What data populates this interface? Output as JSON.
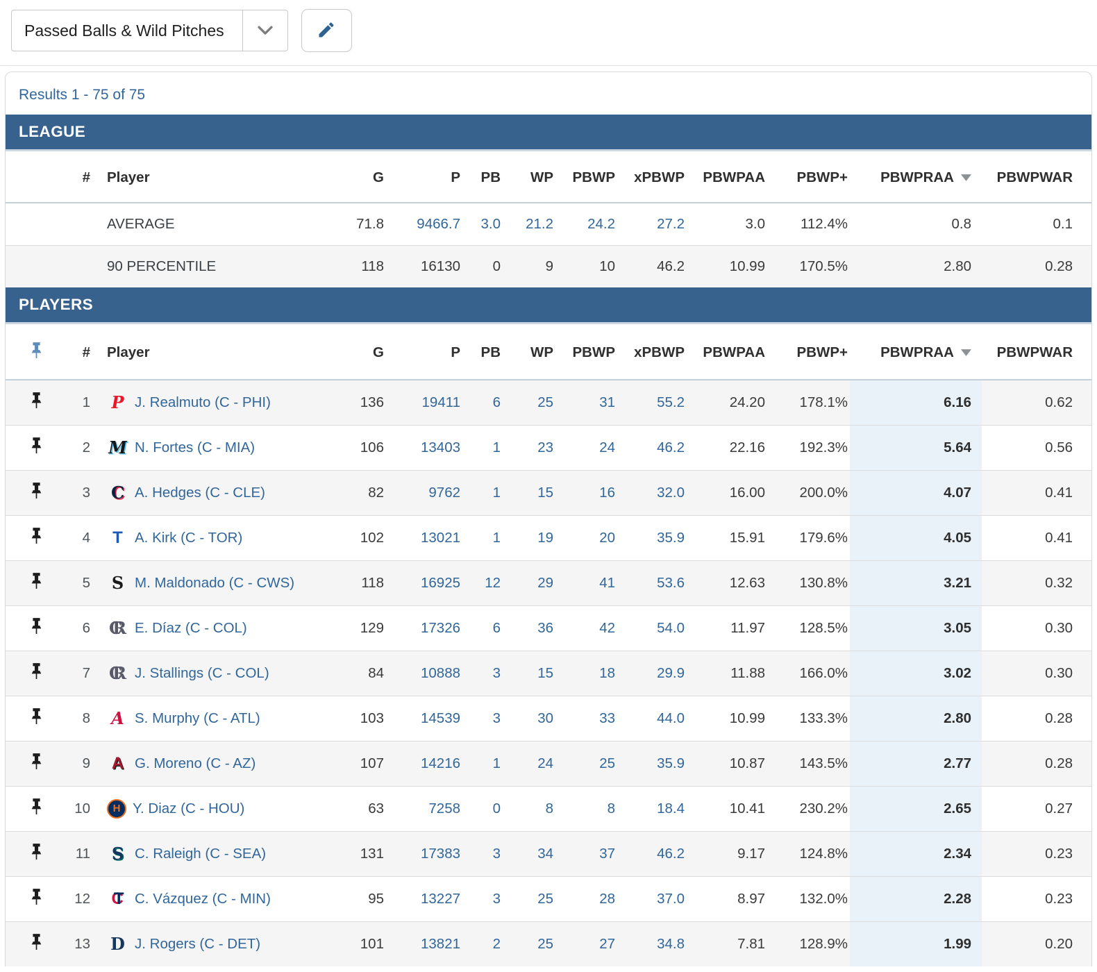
{
  "toolbar": {
    "preset_value": "Passed Balls & Wild Pitches",
    "chevron_icon": "chevron-down-icon",
    "edit_icon": "pencil-icon"
  },
  "results_text": "Results 1 - 75 of 75",
  "columns": [
    "#",
    "Player",
    "G",
    "P",
    "PB",
    "WP",
    "PBWP",
    "xPBWP",
    "PBWPAA",
    "PBWP+",
    "PBWPRAA",
    "PBWPWAR"
  ],
  "sorted_column": "PBWPRAA",
  "sort_direction": "desc",
  "league": {
    "title": "LEAGUE",
    "rows": [
      {
        "label": "AVERAGE",
        "linked": true,
        "stats": {
          "g": "71.8",
          "p": "9466.7",
          "pb": "3.0",
          "wp": "21.2",
          "pbwp": "24.2",
          "xpbwp": "27.2",
          "pbwpaa": "3.0",
          "pbwp_plus": "112.4%",
          "pbwpraa": "0.8",
          "pbwpwar": "0.1"
        }
      },
      {
        "label": "90 PERCENTILE",
        "linked": false,
        "stats": {
          "g": "118",
          "p": "16130",
          "pb": "0",
          "wp": "9",
          "pbwp": "10",
          "xpbwp": "46.2",
          "pbwpaa": "10.99",
          "pbwp_plus": "170.5%",
          "pbwpraa": "2.80",
          "pbwpwar": "0.28"
        }
      }
    ]
  },
  "players": {
    "title": "PLAYERS",
    "rows": [
      {
        "rank": "1",
        "name": "J. Realmuto (C - PHI)",
        "team": {
          "abbr": "PHI",
          "mark": "P",
          "fg": "#E81828",
          "style": "script"
        },
        "stats": {
          "g": "136",
          "p": "19411",
          "pb": "6",
          "wp": "25",
          "pbwp": "31",
          "xpbwp": "55.2",
          "pbwpaa": "24.20",
          "pbwp_plus": "178.1%",
          "pbwpraa": "6.16",
          "pbwpwar": "0.62"
        }
      },
      {
        "rank": "2",
        "name": "N. Fortes (C - MIA)",
        "team": {
          "abbr": "MIA",
          "mark": "M",
          "fg": "#17171B",
          "accent": "#4FC1E9",
          "style": "script"
        },
        "stats": {
          "g": "106",
          "p": "13403",
          "pb": "1",
          "wp": "23",
          "pbwp": "24",
          "xpbwp": "46.2",
          "pbwpaa": "22.16",
          "pbwp_plus": "192.3%",
          "pbwpraa": "5.64",
          "pbwpwar": "0.56"
        }
      },
      {
        "rank": "3",
        "name": "A. Hedges (C - CLE)",
        "team": {
          "abbr": "CLE",
          "mark": "C",
          "fg": "#0C2340",
          "accent": "#E31937",
          "style": "blackletter"
        },
        "stats": {
          "g": "82",
          "p": "9762",
          "pb": "1",
          "wp": "15",
          "pbwp": "16",
          "xpbwp": "32.0",
          "pbwpaa": "16.00",
          "pbwp_plus": "200.0%",
          "pbwpraa": "4.07",
          "pbwpwar": "0.41"
        }
      },
      {
        "rank": "4",
        "name": "A. Kirk (C - TOR)",
        "team": {
          "abbr": "TOR",
          "mark": "T",
          "fg": "#1E5CB3",
          "style": "sans"
        },
        "stats": {
          "g": "102",
          "p": "13021",
          "pb": "1",
          "wp": "19",
          "pbwp": "20",
          "xpbwp": "35.9",
          "pbwpaa": "15.91",
          "pbwp_plus": "179.6%",
          "pbwpraa": "4.05",
          "pbwpwar": "0.41"
        }
      },
      {
        "rank": "5",
        "name": "M. Maldonado (C - CWS)",
        "team": {
          "abbr": "CWS",
          "mark": "S",
          "fg": "#1A1A1A",
          "style": "blackletter"
        },
        "stats": {
          "g": "118",
          "p": "16925",
          "pb": "12",
          "wp": "29",
          "pbwp": "41",
          "xpbwp": "53.6",
          "pbwpaa": "12.63",
          "pbwp_plus": "130.8%",
          "pbwpraa": "3.21",
          "pbwpwar": "0.32"
        }
      },
      {
        "rank": "6",
        "name": "E. Díaz (C - COL)",
        "team": {
          "abbr": "COL",
          "mark": "C",
          "mark2": "R",
          "fg": "#585A6B",
          "fg2": "#585A6B",
          "style": "blackletter"
        },
        "stats": {
          "g": "129",
          "p": "17326",
          "pb": "6",
          "wp": "36",
          "pbwp": "42",
          "xpbwp": "54.0",
          "pbwpaa": "11.97",
          "pbwp_plus": "128.5%",
          "pbwpraa": "3.05",
          "pbwpwar": "0.30"
        }
      },
      {
        "rank": "7",
        "name": "J. Stallings (C - COL)",
        "team": {
          "abbr": "COL",
          "mark": "C",
          "mark2": "R",
          "fg": "#585A6B",
          "fg2": "#585A6B",
          "style": "blackletter"
        },
        "stats": {
          "g": "84",
          "p": "10888",
          "pb": "3",
          "wp": "15",
          "pbwp": "18",
          "xpbwp": "29.9",
          "pbwpaa": "11.88",
          "pbwp_plus": "166.0%",
          "pbwpraa": "3.02",
          "pbwpwar": "0.30"
        }
      },
      {
        "rank": "8",
        "name": "S. Murphy (C - ATL)",
        "team": {
          "abbr": "ATL",
          "mark": "A",
          "fg": "#CE1141",
          "style": "script"
        },
        "stats": {
          "g": "103",
          "p": "14539",
          "pb": "3",
          "wp": "30",
          "pbwp": "33",
          "xpbwp": "44.0",
          "pbwpaa": "10.99",
          "pbwp_plus": "133.3%",
          "pbwpraa": "2.80",
          "pbwpwar": "0.28"
        }
      },
      {
        "rank": "9",
        "name": "G. Moreno (C - AZ)",
        "team": {
          "abbr": "AZ",
          "mark": "A",
          "fg": "#A71930",
          "accent": "#1D1D1D",
          "style": "sans"
        },
        "stats": {
          "g": "107",
          "p": "14216",
          "pb": "1",
          "wp": "24",
          "pbwp": "25",
          "xpbwp": "35.9",
          "pbwpaa": "10.87",
          "pbwp_plus": "143.5%",
          "pbwpraa": "2.77",
          "pbwpwar": "0.28"
        }
      },
      {
        "rank": "10",
        "name": "Y. Diaz (C - HOU)",
        "team": {
          "abbr": "HOU",
          "mark": "H",
          "fg": "#EB6E1F",
          "bg": "#002D62",
          "ring": "#EB6E1F",
          "style": "circle"
        },
        "stats": {
          "g": "63",
          "p": "7258",
          "pb": "0",
          "wp": "8",
          "pbwp": "8",
          "xpbwp": "18.4",
          "pbwpaa": "10.41",
          "pbwp_plus": "230.2%",
          "pbwpraa": "2.65",
          "pbwpwar": "0.27"
        }
      },
      {
        "rank": "11",
        "name": "C. Raleigh (C - SEA)",
        "team": {
          "abbr": "SEA",
          "mark": "S",
          "fg": "#14355F",
          "accent": "#00685E",
          "style": "blackletter"
        },
        "stats": {
          "g": "131",
          "p": "17383",
          "pb": "3",
          "wp": "34",
          "pbwp": "37",
          "xpbwp": "46.2",
          "pbwpaa": "9.17",
          "pbwp_plus": "124.8%",
          "pbwpraa": "2.34",
          "pbwpwar": "0.23"
        }
      },
      {
        "rank": "12",
        "name": "C. Vázquez (C - MIN)",
        "team": {
          "abbr": "MIN",
          "mark": "C",
          "mark2": "T",
          "fg": "#D31145",
          "fg2": "#002B5C",
          "style": "sans"
        },
        "stats": {
          "g": "95",
          "p": "13227",
          "pb": "3",
          "wp": "25",
          "pbwp": "28",
          "xpbwp": "37.0",
          "pbwpaa": "8.97",
          "pbwp_plus": "132.0%",
          "pbwpraa": "2.28",
          "pbwpwar": "0.23"
        }
      },
      {
        "rank": "13",
        "name": "J. Rogers (C - DET)",
        "team": {
          "abbr": "DET",
          "mark": "D",
          "fg": "#17375E",
          "style": "blackletter"
        },
        "stats": {
          "g": "101",
          "p": "13821",
          "pb": "2",
          "wp": "25",
          "pbwp": "27",
          "xpbwp": "34.8",
          "pbwpaa": "7.81",
          "pbwp_plus": "128.9%",
          "pbwpraa": "1.99",
          "pbwpwar": "0.20"
        }
      }
    ]
  },
  "colors": {
    "header_bar": "#38628E",
    "link": "#31669A",
    "sorted_highlight": "#E9F2F9",
    "row_alt": "#F5F5F5",
    "pin": "#1D1D1D",
    "pin_header": "#5F8CB8",
    "sort_triangle": "#8C9196",
    "pencil": "#2D6293"
  }
}
